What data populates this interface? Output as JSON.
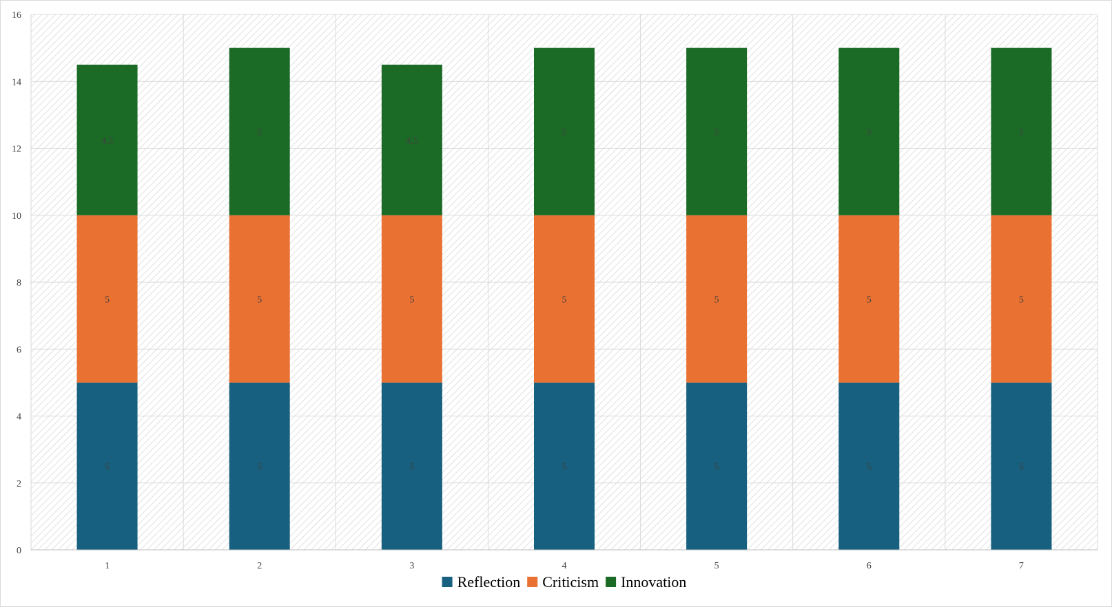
{
  "chart_data": {
    "type": "bar",
    "stacked": true,
    "categories": [
      "1",
      "2",
      "3",
      "4",
      "5",
      "6",
      "7"
    ],
    "series": [
      {
        "name": "Reflection",
        "color": "#17607f",
        "values": [
          5,
          5,
          5,
          5,
          5,
          5,
          5
        ],
        "labels": [
          "5",
          "5",
          "5",
          "5",
          "5",
          "5",
          "5"
        ]
      },
      {
        "name": "Criticism",
        "color": "#e97132",
        "values": [
          5,
          5,
          5,
          5,
          5,
          5,
          5
        ],
        "labels": [
          "5",
          "5",
          "5",
          "5",
          "5",
          "5",
          "5"
        ]
      },
      {
        "name": "Innovation",
        "color": "#1b6b27",
        "values": [
          4.5,
          5,
          4.5,
          5,
          5,
          5,
          5
        ],
        "labels": [
          "4,5",
          "5",
          "4,5",
          "5",
          "5",
          "5",
          "5"
        ]
      }
    ],
    "title": "",
    "xlabel": "",
    "ylabel": "",
    "ylim": [
      0,
      16
    ],
    "yticks": [
      "0",
      "2",
      "4",
      "6",
      "8",
      "10",
      "12",
      "14",
      "16"
    ],
    "grid": true,
    "plot_background": "hatched",
    "legend_position": "bottom"
  }
}
